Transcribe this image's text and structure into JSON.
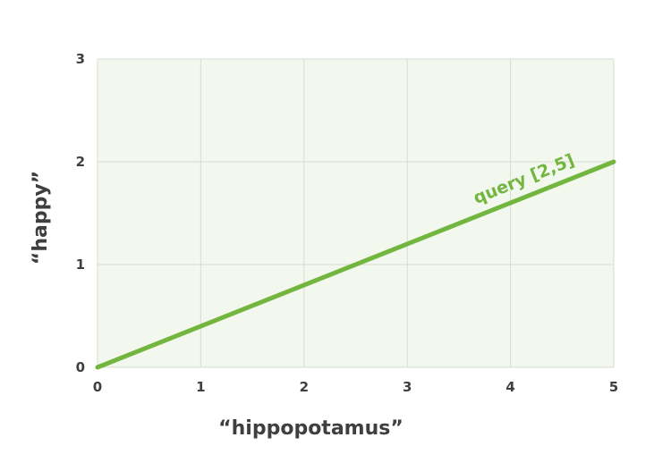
{
  "chart_data": {
    "type": "line",
    "title": "",
    "xlabel": "“hippopotamus”",
    "ylabel": "“happy”",
    "xlim": [
      0,
      5
    ],
    "ylim": [
      0,
      3
    ],
    "xticks": [
      "0",
      "1",
      "2",
      "3",
      "4",
      "5"
    ],
    "yticks": [
      "0",
      "1",
      "2",
      "3"
    ],
    "grid": true,
    "background_color": "#f3f8ee",
    "grid_color": "#d7dcd3",
    "series": [
      {
        "name": "query [2,5]",
        "color": "#72b53f",
        "points": [
          {
            "x": 0,
            "y": 0
          },
          {
            "x": 5,
            "y": 2
          }
        ]
      }
    ]
  }
}
